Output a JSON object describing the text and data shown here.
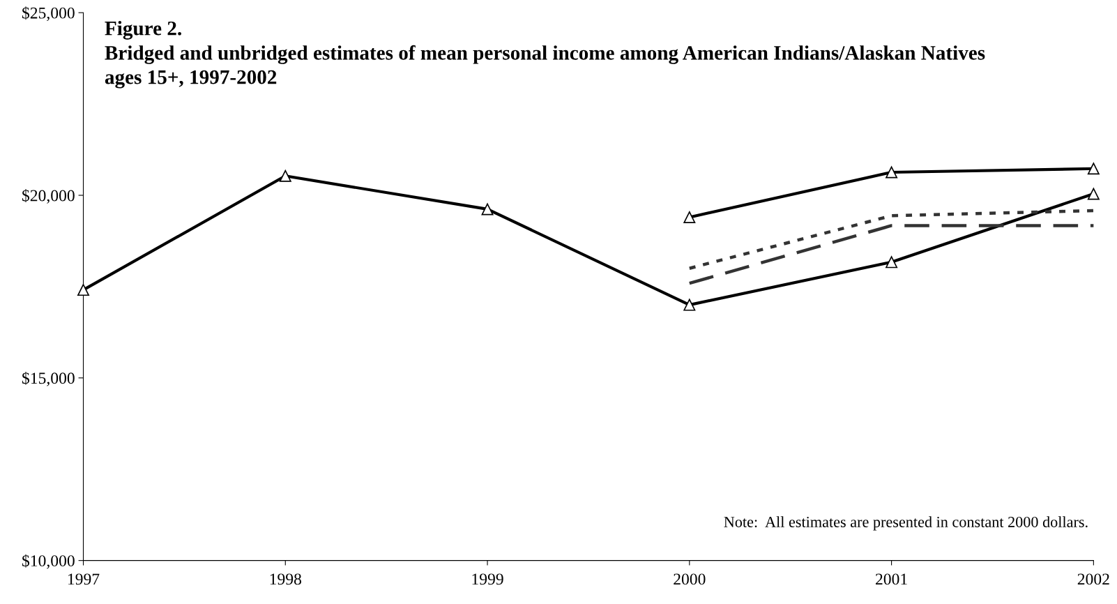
{
  "chart_data": {
    "type": "line",
    "title": "Figure 2.\nBridged and unbridged estimates of mean personal income among American Indians/Alaskan Natives\nages 15+, 1997-2002",
    "x": [
      1997,
      1998,
      1999,
      2000,
      2001,
      2002
    ],
    "series": [
      {
        "color": "#000000",
        "values": [
          17410,
          20530,
          19620,
          17000,
          18170,
          20040
        ],
        "marker": "triangle",
        "line_style": "solid"
      },
      {
        "color": "#000000",
        "x": [
          2000,
          2001,
          2002
        ],
        "values": [
          19400,
          20630,
          20730
        ],
        "marker": "triangle",
        "line_style": "solid"
      },
      {
        "color": "#333333",
        "x": [
          2000,
          2001,
          2002
        ],
        "values": [
          18000,
          19440,
          19580
        ],
        "marker": "none",
        "line_style": "dotted"
      },
      {
        "color": "#333333",
        "x": [
          2000,
          2001,
          2002
        ],
        "values": [
          17590,
          19170,
          19170
        ],
        "marker": "none",
        "line_style": "dashed"
      }
    ],
    "xlim": [
      1997,
      2002
    ],
    "xticks": [
      1997,
      1998,
      1999,
      2000,
      2001,
      2002
    ],
    "ylim": [
      10000,
      25000
    ],
    "yticks": [
      {
        "value": 10000,
        "label": "$10,000"
      },
      {
        "value": 15000,
        "label": "$15,000"
      },
      {
        "value": 20000,
        "label": "$20,000"
      },
      {
        "value": 25000,
        "label": "$25,000"
      }
    ],
    "grid": false,
    "legend": false,
    "annotations": [
      "Note:  All estimates are presented in constant 2000 dollars."
    ]
  }
}
